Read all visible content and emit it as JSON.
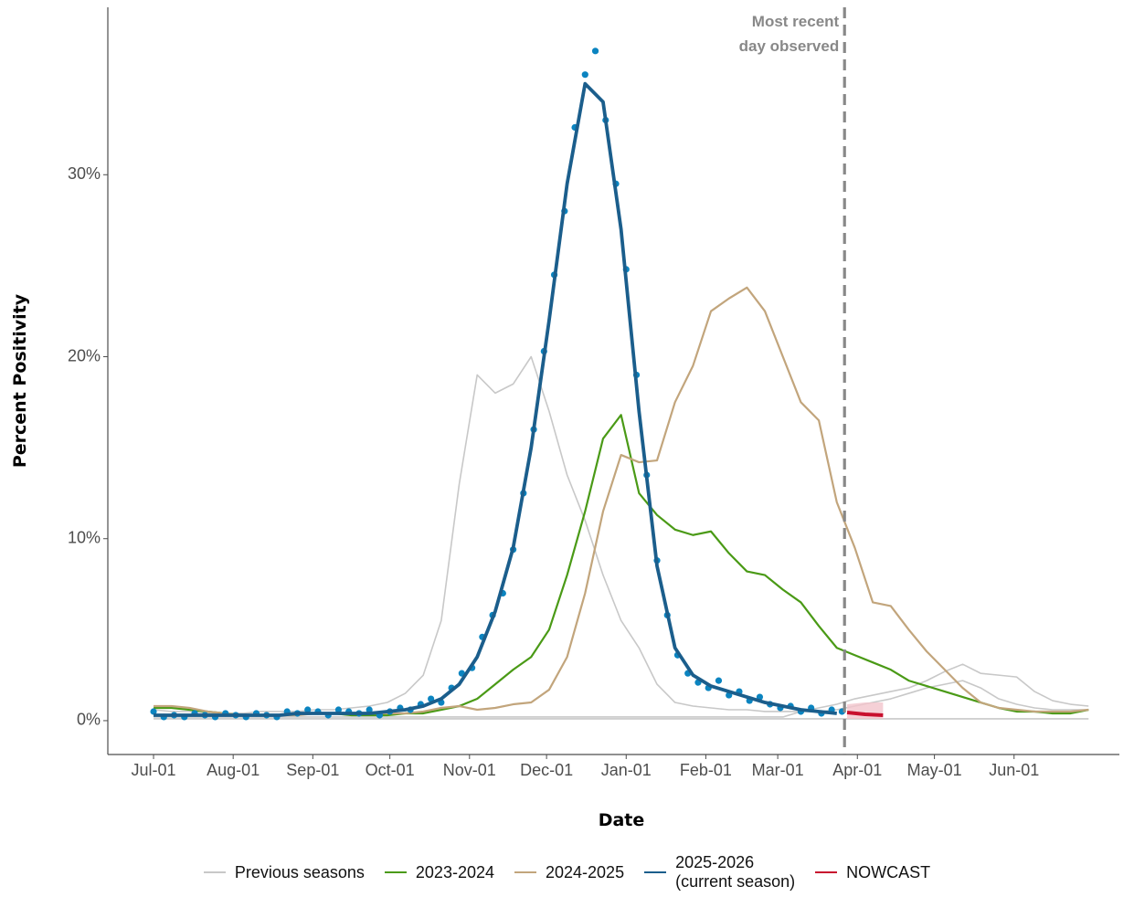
{
  "chart_data": {
    "type": "line",
    "x_label": "Date",
    "y_label": "Percent Positivity",
    "xlim": [
      -17.8,
      376
    ],
    "ylim": [
      -1.86,
      39.2
    ],
    "xticks": [
      {
        "value": 0,
        "label": "Jul-01"
      },
      {
        "value": 31,
        "label": "Aug-01"
      },
      {
        "value": 62,
        "label": "Sep-01"
      },
      {
        "value": 92,
        "label": "Oct-01"
      },
      {
        "value": 123,
        "label": "Nov-01"
      },
      {
        "value": 153,
        "label": "Dec-01"
      },
      {
        "value": 184,
        "label": "Jan-01"
      },
      {
        "value": 215,
        "label": "Feb-01"
      },
      {
        "value": 243,
        "label": "Mar-01"
      },
      {
        "value": 274,
        "label": "Apr-01"
      },
      {
        "value": 304,
        "label": "May-01"
      },
      {
        "value": 335,
        "label": "Jun-01"
      }
    ],
    "yticks": [
      {
        "value": 0,
        "label": "0%"
      },
      {
        "value": 10,
        "label": "10%"
      },
      {
        "value": 20,
        "label": "20%"
      },
      {
        "value": 30,
        "label": "30%"
      }
    ],
    "grid": false,
    "legend": "bottom",
    "x": [
      0,
      7,
      14,
      21,
      28,
      35,
      42,
      49,
      56,
      63,
      70,
      77,
      84,
      91,
      98,
      105,
      112,
      119,
      126,
      133,
      140,
      147,
      154,
      161,
      168,
      175,
      182,
      189,
      196,
      203,
      210,
      217,
      224,
      231,
      238,
      245,
      252,
      259,
      266,
      273,
      280,
      287,
      294,
      301,
      308,
      315,
      322,
      329,
      336,
      343,
      350,
      357,
      364
    ],
    "series": [
      {
        "name": "Previous seasons",
        "color": "#c8c8c8",
        "lines": [
          [
            0.6,
            0.5,
            0.5,
            0.4,
            0.4,
            0.4,
            0.5,
            0.5,
            0.5,
            0.6,
            0.6,
            0.7,
            0.8,
            1.0,
            1.5,
            2.5,
            5.5,
            13.0,
            19.0,
            18.0,
            18.5,
            20.0,
            17.0,
            13.5,
            11.0,
            8.0,
            5.5,
            4.0,
            2.0,
            1.0,
            0.8,
            0.7,
            0.6,
            0.6,
            0.5,
            0.5,
            0.5,
            0.5,
            0.6,
            0.8,
            1.0,
            1.2,
            1.5,
            1.8,
            2.0,
            2.2,
            1.8,
            1.2,
            0.9,
            0.7,
            0.6,
            0.6,
            0.6
          ],
          [
            0.2,
            0.2,
            0.2,
            0.2,
            0.2,
            0.2,
            0.2,
            0.2,
            0.2,
            0.2,
            0.2,
            0.2,
            0.2,
            0.2,
            0.2,
            0.2,
            0.2,
            0.2,
            0.2,
            0.2,
            0.2,
            0.2,
            0.2,
            0.2,
            0.2,
            0.2,
            0.2,
            0.2,
            0.2,
            0.2,
            0.2,
            0.2,
            0.2,
            0.2,
            0.2,
            0.2,
            0.5,
            0.7,
            0.9,
            1.2,
            1.4,
            1.6,
            1.8,
            2.2,
            2.7,
            3.1,
            2.6,
            2.5,
            2.4,
            1.6,
            1.1,
            0.9,
            0.8
          ],
          [
            0.1,
            0.1,
            0.1,
            0.1,
            0.1,
            0.1,
            0.1,
            0.1,
            0.1,
            0.1,
            0.1,
            0.1,
            0.1,
            0.1,
            0.1,
            0.1,
            0.1,
            0.1,
            0.1,
            0.1,
            0.1,
            0.1,
            0.1,
            0.1,
            0.1,
            0.1,
            0.1,
            0.1,
            0.1,
            0.1,
            0.1,
            0.1,
            0.1,
            0.1,
            0.1,
            0.1,
            0.1,
            0.1,
            0.1,
            0.1,
            0.1,
            0.1,
            0.1,
            0.1,
            0.1,
            0.1,
            0.1,
            0.1,
            0.1,
            0.1,
            0.1,
            0.1,
            0.1
          ]
        ]
      },
      {
        "name": "2023-2024",
        "color": "#4a9a16",
        "values": [
          0.7,
          0.7,
          0.6,
          0.5,
          0.4,
          0.3,
          0.3,
          0.3,
          0.4,
          0.4,
          0.4,
          0.3,
          0.3,
          0.3,
          0.4,
          0.4,
          0.6,
          0.8,
          1.2,
          2.0,
          2.8,
          3.5,
          5.0,
          8.0,
          11.5,
          15.5,
          16.8,
          12.5,
          11.3,
          10.5,
          10.2,
          10.4,
          9.2,
          8.2,
          8.0,
          7.2,
          6.5,
          5.2,
          4.0,
          3.6,
          3.2,
          2.8,
          2.2,
          1.9,
          1.6,
          1.3,
          1.0,
          0.7,
          0.5,
          0.5,
          0.4,
          0.4,
          0.6
        ]
      },
      {
        "name": "2024-2025",
        "color": "#c2a57c",
        "values": [
          0.8,
          0.8,
          0.7,
          0.5,
          0.4,
          0.3,
          0.3,
          0.3,
          0.3,
          0.4,
          0.4,
          0.4,
          0.4,
          0.4,
          0.4,
          0.5,
          0.7,
          0.8,
          0.6,
          0.7,
          0.9,
          1.0,
          1.7,
          3.5,
          7.0,
          11.5,
          14.6,
          14.2,
          14.3,
          17.5,
          19.5,
          22.5,
          23.2,
          23.8,
          22.5,
          20.0,
          17.5,
          16.5,
          12.0,
          9.5,
          6.5,
          6.3,
          5.0,
          3.8,
          2.8,
          1.8,
          1.0,
          0.7,
          0.6,
          0.5,
          0.5,
          0.5,
          0.6
        ]
      },
      {
        "name": "2025-2026\n(current season)",
        "color": "#1b5e8c",
        "point_color": "#0b84c0",
        "values": [
          0.3,
          0.3,
          0.3,
          0.3,
          0.3,
          0.3,
          0.3,
          0.3,
          0.4,
          0.4,
          0.4,
          0.4,
          0.4,
          0.5,
          0.6,
          0.8,
          1.2,
          2.0,
          3.5,
          6.0,
          9.5,
          15,
          22,
          29.5,
          35,
          34,
          27,
          17,
          8.5,
          4,
          2.5,
          1.9,
          1.6,
          1.3,
          1.0,
          0.8,
          0.6,
          0.5,
          0.4,
          null,
          null,
          null,
          null,
          null,
          null,
          null,
          null,
          null,
          null,
          null,
          null,
          null,
          null
        ],
        "points": {
          "x": [
            0,
            4,
            8,
            12,
            16,
            20,
            24,
            28,
            32,
            36,
            40,
            44,
            48,
            52,
            56,
            60,
            64,
            68,
            72,
            76,
            80,
            84,
            88,
            92,
            96,
            100,
            104,
            108,
            112,
            116,
            120,
            124,
            128,
            132,
            136,
            140,
            144,
            148,
            152,
            156,
            160,
            164,
            168,
            172,
            176,
            180,
            184,
            188,
            192,
            196,
            200,
            204,
            208,
            212,
            216,
            220,
            224,
            228,
            232,
            236,
            240,
            244,
            248,
            252,
            256,
            260,
            264,
            268
          ],
          "values": [
            0.5,
            0.2,
            0.3,
            0.2,
            0.4,
            0.3,
            0.2,
            0.4,
            0.3,
            0.2,
            0.4,
            0.3,
            0.2,
            0.5,
            0.4,
            0.6,
            0.5,
            0.3,
            0.6,
            0.5,
            0.4,
            0.6,
            0.3,
            0.5,
            0.7,
            0.6,
            0.9,
            1.2,
            1.0,
            1.8,
            2.6,
            2.9,
            4.6,
            5.8,
            7.0,
            9.4,
            12.5,
            16.0,
            20.3,
            24.5,
            28.0,
            32.6,
            35.5,
            36.8,
            33.0,
            29.5,
            24.8,
            19.0,
            13.5,
            8.8,
            5.8,
            3.6,
            2.6,
            2.1,
            1.8,
            2.2,
            1.4,
            1.6,
            1.1,
            1.3,
            0.9,
            0.7,
            0.8,
            0.5,
            0.7,
            0.4,
            0.6,
            0.5
          ]
        }
      },
      {
        "name": "NOWCAST",
        "color": "#c8102e",
        "band_color": "#f2c4cc",
        "x": [
          270,
          277,
          284
        ],
        "values": [
          0.45,
          0.35,
          0.3
        ],
        "lower": [
          0.1,
          0.1,
          0.1
        ],
        "upper": [
          0.9,
          1.0,
          1.0
        ]
      }
    ],
    "vline": {
      "x": 269,
      "color": "#888888",
      "label": "Most recent\nday observed"
    }
  }
}
